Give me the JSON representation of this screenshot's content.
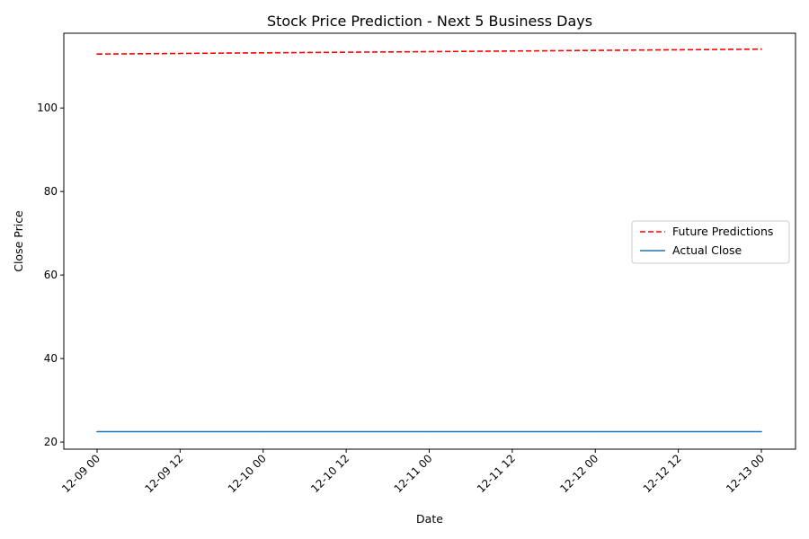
{
  "chart_data": {
    "type": "line",
    "title": "Stock Price Prediction - Next 5 Business Days",
    "xlabel": "Date",
    "ylabel": "Close Price",
    "x": [
      "2024-12-09",
      "2024-12-10",
      "2024-12-11",
      "2024-12-12",
      "2024-12-13"
    ],
    "x_tick_labels": [
      "12-09 00",
      "12-09 12",
      "12-10 00",
      "12-10 12",
      "12-11 00",
      "12-11 12",
      "12-12 00",
      "12-12 12",
      "12-13 00"
    ],
    "y_ticks": [
      20,
      40,
      60,
      80,
      100
    ],
    "ylim": [
      18.3,
      117.9
    ],
    "grid": false,
    "legend_position": "center-right",
    "series": [
      {
        "name": "Future Predictions",
        "values": [
          112.9,
          113.2,
          113.5,
          113.8,
          114.1
        ],
        "color": "#ff0000",
        "style": "dashed"
      },
      {
        "name": "Actual Close",
        "values": [
          22.5,
          22.5,
          22.5,
          22.5,
          22.5
        ],
        "color": "#1f77b4",
        "style": "solid"
      }
    ]
  }
}
